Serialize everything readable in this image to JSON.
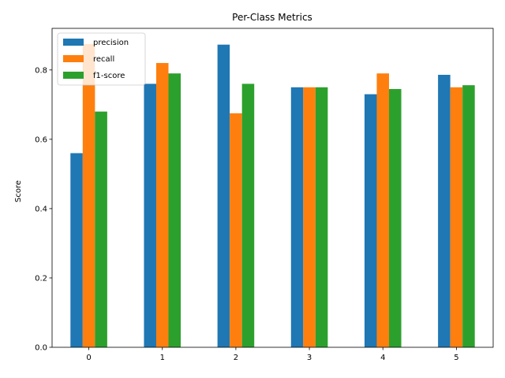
{
  "chart_data": {
    "type": "bar",
    "title": "Per-Class Metrics",
    "xlabel": "",
    "ylabel": "Score",
    "categories": [
      "0",
      "1",
      "2",
      "3",
      "4",
      "5"
    ],
    "ylim": [
      0,
      0.92
    ],
    "yticks": [
      0.0,
      0.2,
      0.4,
      0.6,
      0.8
    ],
    "ytick_labels": [
      "0.0",
      "0.2",
      "0.4",
      "0.6",
      "0.8"
    ],
    "grid": false,
    "legend_position": "top-left",
    "series": [
      {
        "name": "precision",
        "color": "#1f77b4",
        "values": [
          0.56,
          0.76,
          0.873,
          0.75,
          0.73,
          0.786
        ]
      },
      {
        "name": "recall",
        "color": "#ff7f0e",
        "values": [
          0.875,
          0.82,
          0.675,
          0.75,
          0.79,
          0.75
        ]
      },
      {
        "name": "f1-score",
        "color": "#2ca02c",
        "values": [
          0.68,
          0.79,
          0.76,
          0.75,
          0.745,
          0.756
        ]
      }
    ]
  }
}
